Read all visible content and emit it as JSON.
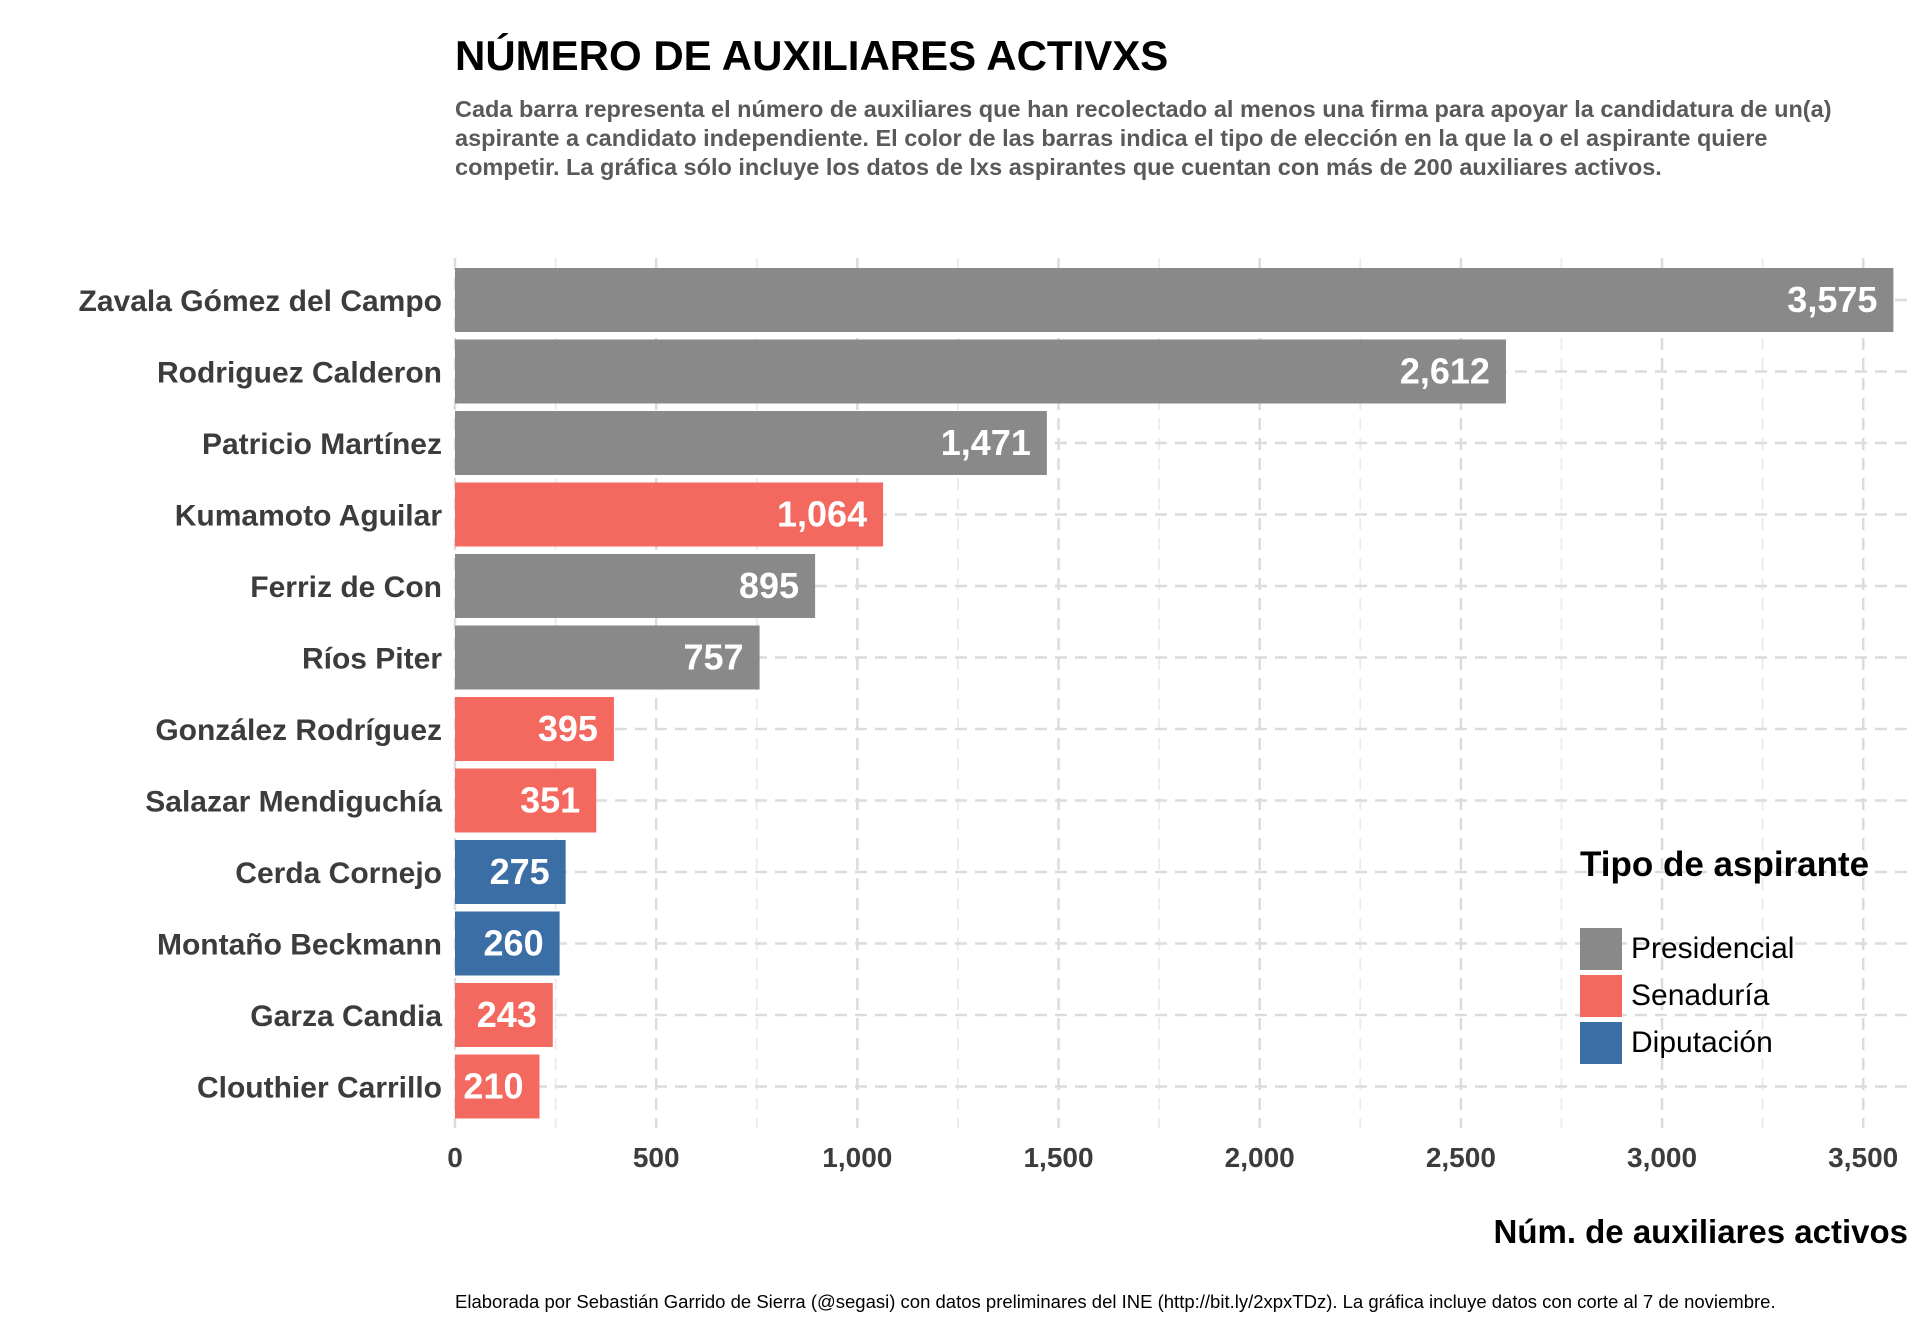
{
  "title": "NÚMERO DE AUXILIARES ACTIVXS",
  "subtitle": "Cada barra representa el número de auxiliares que han recolectado al menos una firma para apoyar la candidatura de un(a) aspirante a candidato independiente. El color de las barras indica el tipo de elección en la que la o el aspirante quiere competir. La gráfica sólo incluye los datos de lxs aspirantes que cuentan con más de 200 auxiliares activos.",
  "caption": "Elaborada por Sebastián Garrido de Sierra (@segasi) con datos preliminares del INE (http://bit.ly/2xpxTDz). La gráfica incluye datos con corte al 7 de noviembre.",
  "legend": {
    "title": "Tipo de aspirante",
    "items": [
      {
        "label": "Presidencial",
        "color": "#898989"
      },
      {
        "label": "Senaduría",
        "color": "#f4695f"
      },
      {
        "label": "Diputación",
        "color": "#3a6ea5"
      }
    ]
  },
  "chart_data": {
    "type": "bar",
    "orientation": "horizontal",
    "title": "NÚMERO DE AUXILIARES ACTIVXS",
    "xlabel": "Núm. de auxiliares activos",
    "ylabel": "",
    "xlim": [
      0,
      3575
    ],
    "xticks": [
      0,
      500,
      1000,
      1500,
      2000,
      2500,
      3000,
      3500
    ],
    "xtick_labels": [
      "0",
      "500",
      "1,000",
      "1,500",
      "2,000",
      "2,500",
      "3,000",
      "3,500"
    ],
    "grid": true,
    "legend_position": "bottom-right",
    "categories": [
      "Zavala Gómez del Campo",
      "Rodriguez Calderon",
      "Patricio Martínez",
      "Kumamoto Aguilar",
      "Ferriz de Con",
      "Ríos Piter",
      "González Rodríguez",
      "Salazar Mendiguchía",
      "Cerda Cornejo",
      "Montaño Beckmann",
      "Garza Candia",
      "Clouthier Carrillo"
    ],
    "values": [
      3575,
      2612,
      1471,
      1064,
      895,
      757,
      395,
      351,
      275,
      260,
      243,
      210
    ],
    "value_labels": [
      "3,575",
      "2,612",
      "1,471",
      "1,064",
      "895",
      "757",
      "395",
      "351",
      "275",
      "260",
      "243",
      "210"
    ],
    "types": [
      "Presidencial",
      "Presidencial",
      "Presidencial",
      "Senaduría",
      "Presidencial",
      "Presidencial",
      "Senaduría",
      "Senaduría",
      "Diputación",
      "Diputación",
      "Senaduría",
      "Senaduría"
    ],
    "x_axis_title": "Núm. de auxiliares activos"
  }
}
